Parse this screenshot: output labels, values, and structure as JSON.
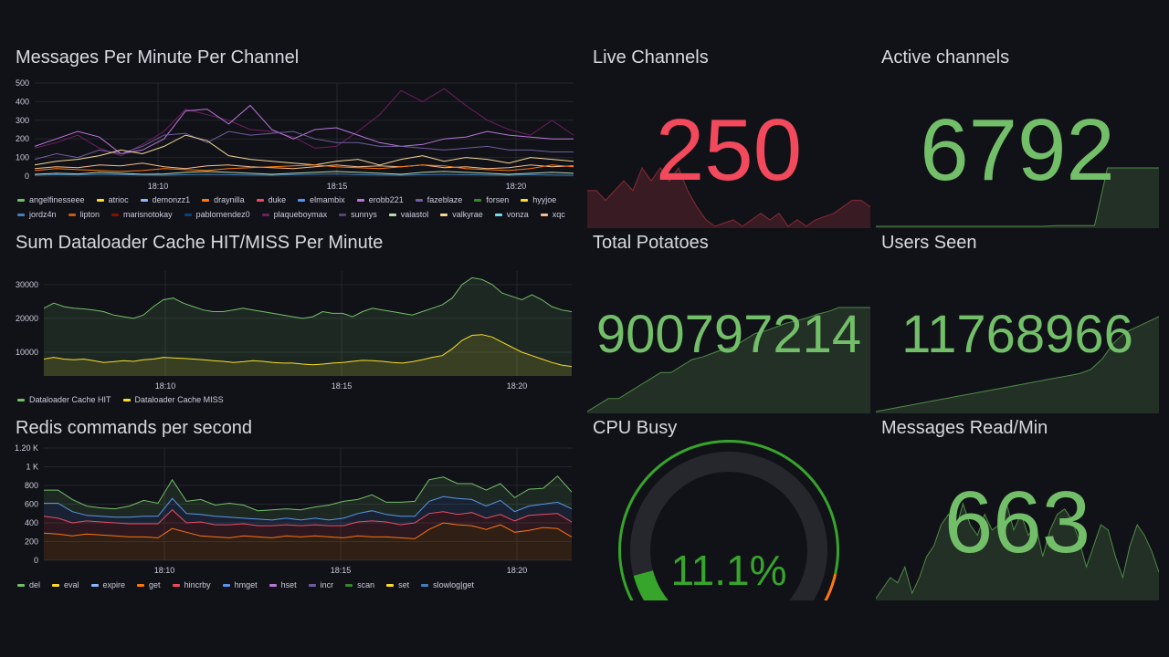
{
  "panels": {
    "messages": {
      "title": "Messages Per Minute Per Channel",
      "legend": [
        {
          "name": "angelfinesseee",
          "color": "#73bf69"
        },
        {
          "name": "atrioc",
          "color": "#fade2a"
        },
        {
          "name": "demonzz1",
          "color": "#8ab8ff"
        },
        {
          "name": "draynilla",
          "color": "#ff780a"
        },
        {
          "name": "duke",
          "color": "#f2495c"
        },
        {
          "name": "elmambix",
          "color": "#5794f2"
        },
        {
          "name": "erobb221",
          "color": "#b877d9"
        },
        {
          "name": "fazeblaze",
          "color": "#705da0"
        },
        {
          "name": "forsen",
          "color": "#37872d"
        },
        {
          "name": "hyyjoe",
          "color": "#fade2a"
        },
        {
          "name": "jordz4n",
          "color": "#447ebc"
        },
        {
          "name": "lipton",
          "color": "#c15c17"
        },
        {
          "name": "marisnotokay",
          "color": "#890f02"
        },
        {
          "name": "pablomendez0",
          "color": "#0a437c"
        },
        {
          "name": "plaqueboymax",
          "color": "#6d1f62"
        },
        {
          "name": "sunnys",
          "color": "#584477"
        },
        {
          "name": "vaiastol",
          "color": "#b7dbab"
        },
        {
          "name": "valkyrae",
          "color": "#f4d598"
        },
        {
          "name": "vonza",
          "color": "#70dbed"
        },
        {
          "name": "xqc",
          "color": "#f9ba8f"
        }
      ]
    },
    "dataloader": {
      "title": "Sum Dataloader Cache HIT/MISS Per Minute",
      "legend": [
        {
          "name": "Dataloader Cache HIT",
          "color": "#73bf69"
        },
        {
          "name": "Dataloader Cache MISS",
          "color": "#fade2a"
        }
      ]
    },
    "redis": {
      "title": "Redis commands per second",
      "legend": [
        {
          "name": "del",
          "color": "#73bf69"
        },
        {
          "name": "eval",
          "color": "#fade2a"
        },
        {
          "name": "expire",
          "color": "#8ab8ff"
        },
        {
          "name": "get",
          "color": "#ff780a"
        },
        {
          "name": "hincrby",
          "color": "#f2495c"
        },
        {
          "name": "hmget",
          "color": "#5794f2"
        },
        {
          "name": "hset",
          "color": "#b877d9"
        },
        {
          "name": "incr",
          "color": "#705da0"
        },
        {
          "name": "scan",
          "color": "#37872d"
        },
        {
          "name": "set",
          "color": "#fade2a"
        },
        {
          "name": "slowlog|get",
          "color": "#447ebc"
        }
      ]
    }
  },
  "stats": {
    "live_channels": {
      "title": "Live Channels",
      "value": "250",
      "color": "#f2495c"
    },
    "active_channels": {
      "title": "Active channels",
      "value": "6792",
      "color": "#73bf69"
    },
    "total_potatoes": {
      "title": "Total Potatoes",
      "value": "900797214",
      "color": "#73bf69"
    },
    "users_seen": {
      "title": "Users Seen",
      "value": "11768966",
      "color": "#73bf69"
    },
    "cpu_busy": {
      "title": "CPU Busy",
      "value": "11.1%",
      "percent": 11.1,
      "color": "#37a52b"
    },
    "messages_read": {
      "title": "Messages Read/Min",
      "value": "663",
      "color": "#73bf69"
    }
  },
  "chart_data": [
    {
      "type": "line",
      "title": "Messages Per Minute Per Channel",
      "x_ticks": [
        "18:10",
        "18:15",
        "18:20"
      ],
      "y_ticks": [
        "0",
        "100",
        "200",
        "300",
        "400",
        "500"
      ],
      "ylim": [
        0,
        500
      ],
      "series": [
        {
          "name": "plaqueboymax",
          "color": "#6d1f62",
          "values": [
            150,
            180,
            220,
            150,
            110,
            170,
            240,
            360,
            330,
            300,
            250,
            240,
            210,
            150,
            160,
            240,
            330,
            460,
            400,
            470,
            380,
            300,
            250,
            220,
            300,
            220
          ]
        },
        {
          "name": "erobb221",
          "color": "#b877d9",
          "values": [
            160,
            200,
            240,
            210,
            120,
            140,
            200,
            350,
            360,
            280,
            380,
            250,
            200,
            250,
            260,
            220,
            180,
            160,
            170,
            200,
            210,
            240,
            220,
            210,
            200,
            200
          ]
        },
        {
          "name": "fazeblaze",
          "color": "#705da0",
          "values": [
            90,
            120,
            100,
            140,
            120,
            160,
            220,
            230,
            180,
            240,
            220,
            230,
            240,
            200,
            180,
            180,
            160,
            160,
            150,
            140,
            150,
            160,
            140,
            140,
            130,
            130
          ]
        },
        {
          "name": "valkyrae",
          "color": "#f4d598",
          "values": [
            60,
            80,
            90,
            110,
            140,
            120,
            160,
            220,
            190,
            110,
            90,
            80,
            70,
            60,
            80,
            90,
            60,
            90,
            110,
            80,
            100,
            90,
            70,
            100,
            90,
            80
          ]
        },
        {
          "name": "xqc",
          "color": "#f9ba8f",
          "values": [
            40,
            50,
            45,
            60,
            55,
            70,
            50,
            40,
            55,
            60,
            50,
            45,
            40,
            50,
            60,
            50,
            55,
            50,
            60,
            45,
            50,
            40,
            45,
            60,
            50,
            55
          ]
        },
        {
          "name": "draynilla",
          "color": "#ff780a",
          "values": [
            30,
            40,
            35,
            30,
            25,
            30,
            40,
            35,
            30,
            40,
            45,
            50,
            55,
            60,
            50,
            45,
            40,
            50,
            60,
            55,
            40,
            35,
            30,
            40,
            60,
            50
          ]
        },
        {
          "name": "vaiastol",
          "color": "#b7dbab",
          "values": [
            10,
            15,
            12,
            20,
            15,
            10,
            12,
            20,
            25,
            20,
            15,
            10,
            15,
            20,
            25,
            20,
            15,
            10,
            20,
            25,
            20,
            15,
            10,
            15,
            20,
            15
          ]
        },
        {
          "name": "jordz4n",
          "color": "#447ebc",
          "values": [
            5,
            8,
            6,
            10,
            8,
            6,
            5,
            8,
            10,
            8,
            6,
            5,
            8,
            10,
            12,
            8,
            6,
            5,
            8,
            10,
            8,
            6,
            5,
            8,
            6,
            5
          ]
        }
      ]
    },
    {
      "type": "area",
      "title": "Sum Dataloader Cache HIT/MISS Per Minute",
      "x_ticks": [
        "18:10",
        "18:15",
        "18:20"
      ],
      "y_ticks": [
        "10000",
        "20000",
        "30000"
      ],
      "ylim": [
        3000,
        34000
      ],
      "series": [
        {
          "name": "Dataloader Cache HIT",
          "color": "#73bf69",
          "values": [
            23000,
            24500,
            23500,
            23000,
            22800,
            22500,
            22000,
            21000,
            20500,
            20000,
            21000,
            23500,
            25500,
            26000,
            24500,
            23500,
            22500,
            22000,
            22000,
            22500,
            23000,
            22500,
            22000,
            21500,
            21000,
            20500,
            20000,
            20500,
            22000,
            21500,
            21500,
            20500,
            22000,
            23000,
            22500,
            22000,
            21500,
            21000,
            22000,
            23000,
            24000,
            26000,
            30000,
            32000,
            31500,
            30000,
            27500,
            26500,
            25500,
            27000,
            25500,
            23500,
            22500,
            22000
          ]
        },
        {
          "name": "Dataloader Cache MISS",
          "color": "#fade2a",
          "values": [
            8000,
            8500,
            8000,
            7800,
            8000,
            7500,
            7000,
            7200,
            7500,
            7300,
            7800,
            8000,
            8500,
            8300,
            8200,
            8000,
            7800,
            7500,
            7300,
            7000,
            7200,
            7500,
            7300,
            7000,
            6800,
            6800,
            6500,
            6300,
            6500,
            6800,
            7000,
            7300,
            7600,
            7500,
            7300,
            7000,
            6800,
            7200,
            7800,
            8500,
            9000,
            11000,
            13500,
            15000,
            15200,
            14500,
            13000,
            11500,
            10000,
            9000,
            8000,
            7000,
            6200,
            5800
          ]
        }
      ]
    },
    {
      "type": "area",
      "title": "Redis commands per second",
      "stacked": true,
      "x_ticks": [
        "18:10",
        "18:15",
        "18:20"
      ],
      "y_ticks": [
        "0",
        "200",
        "400",
        "600",
        "800",
        "1 K",
        "1.20 K"
      ],
      "ylim": [
        0,
        1200
      ],
      "series": [
        {
          "name": "get",
          "color": "#ff780a",
          "values": [
            290,
            280,
            260,
            280,
            270,
            260,
            250,
            250,
            240,
            340,
            300,
            260,
            250,
            240,
            260,
            250,
            240,
            260,
            250,
            260,
            250,
            240,
            260,
            250,
            250,
            240,
            230,
            330,
            400,
            380,
            370,
            330,
            380,
            300,
            320,
            350,
            340,
            250
          ]
        },
        {
          "name": "hincrby",
          "color": "#f2495c",
          "values": [
            180,
            170,
            140,
            140,
            140,
            140,
            140,
            140,
            150,
            200,
            100,
            150,
            130,
            140,
            130,
            120,
            130,
            120,
            120,
            120,
            120,
            130,
            150,
            170,
            160,
            140,
            170,
            170,
            120,
            110,
            140,
            120,
            110,
            120,
            160,
            140,
            160,
            160
          ]
        },
        {
          "name": "hmget",
          "color": "#5794f2",
          "values": [
            140,
            160,
            120,
            60,
            60,
            60,
            70,
            80,
            80,
            120,
            100,
            80,
            90,
            80,
            60,
            70,
            60,
            70,
            60,
            70,
            60,
            80,
            90,
            110,
            80,
            90,
            70,
            130,
            160,
            170,
            140,
            130,
            150,
            100,
            100,
            110,
            120,
            140
          ]
        },
        {
          "name": "del",
          "color": "#73bf69",
          "values": [
            140,
            140,
            130,
            100,
            90,
            90,
            120,
            170,
            140,
            200,
            130,
            160,
            120,
            150,
            140,
            90,
            110,
            100,
            110,
            120,
            160,
            180,
            150,
            170,
            130,
            150,
            160,
            230,
            210,
            160,
            170,
            170,
            180,
            150,
            180,
            170,
            280,
            180
          ]
        }
      ]
    },
    {
      "type": "area",
      "title": "Live Channels",
      "series": [
        {
          "name": "Live Channels",
          "values": [
            255,
            255,
            252,
            255,
            258,
            255,
            262,
            258,
            262,
            258,
            262,
            255,
            250,
            246,
            244,
            245,
            246,
            244,
            246,
            248,
            246,
            248,
            244,
            246,
            244,
            246,
            247,
            248,
            250,
            252,
            252,
            250
          ]
        }
      ]
    },
    {
      "type": "area",
      "title": "Active channels",
      "series": [
        {
          "name": "Active channels",
          "values": [
            5000,
            5000,
            5000,
            5000,
            5000,
            5000,
            5000,
            5000,
            5000,
            5000,
            5000,
            5000,
            5000,
            5000,
            5020,
            5020,
            5020,
            5020,
            6792,
            6792,
            6792,
            6792,
            6792
          ]
        }
      ]
    },
    {
      "type": "area",
      "title": "Total Potatoes",
      "series": [
        {
          "name": "Total Potatoes",
          "values": [
            0.2,
            0.25,
            0.3,
            0.3,
            0.35,
            0.4,
            0.45,
            0.5,
            0.5,
            0.55,
            0.6,
            0.62,
            0.65,
            0.68,
            0.7,
            0.75,
            0.8,
            0.82,
            0.85,
            0.88,
            0.9,
            0.92,
            0.95,
            0.97,
            1.0,
            1.0,
            1.0,
            1.0
          ]
        }
      ]
    },
    {
      "type": "area",
      "title": "Users Seen",
      "series": [
        {
          "name": "Users Seen",
          "values": [
            0.1,
            0.12,
            0.14,
            0.16,
            0.18,
            0.2,
            0.22,
            0.24,
            0.26,
            0.28,
            0.3,
            0.32,
            0.34,
            0.36,
            0.38,
            0.4,
            0.42,
            0.44,
            0.46,
            0.5,
            0.6,
            0.75,
            0.85,
            0.9,
            0.95,
            1.0
          ]
        }
      ]
    },
    {
      "type": "area",
      "title": "Messages Read/Min",
      "series": [
        {
          "name": "Messages Read/Min",
          "values": [
            560,
            580,
            600,
            590,
            620,
            570,
            600,
            640,
            660,
            700,
            720,
            690,
            740,
            700,
            680,
            720,
            690,
            700,
            740,
            690,
            720,
            680,
            700,
            640,
            690,
            720,
            730,
            710,
            670,
            620,
            660,
            700,
            690,
            640,
            600,
            660,
            700,
            680,
            650,
            610
          ]
        }
      ]
    }
  ]
}
